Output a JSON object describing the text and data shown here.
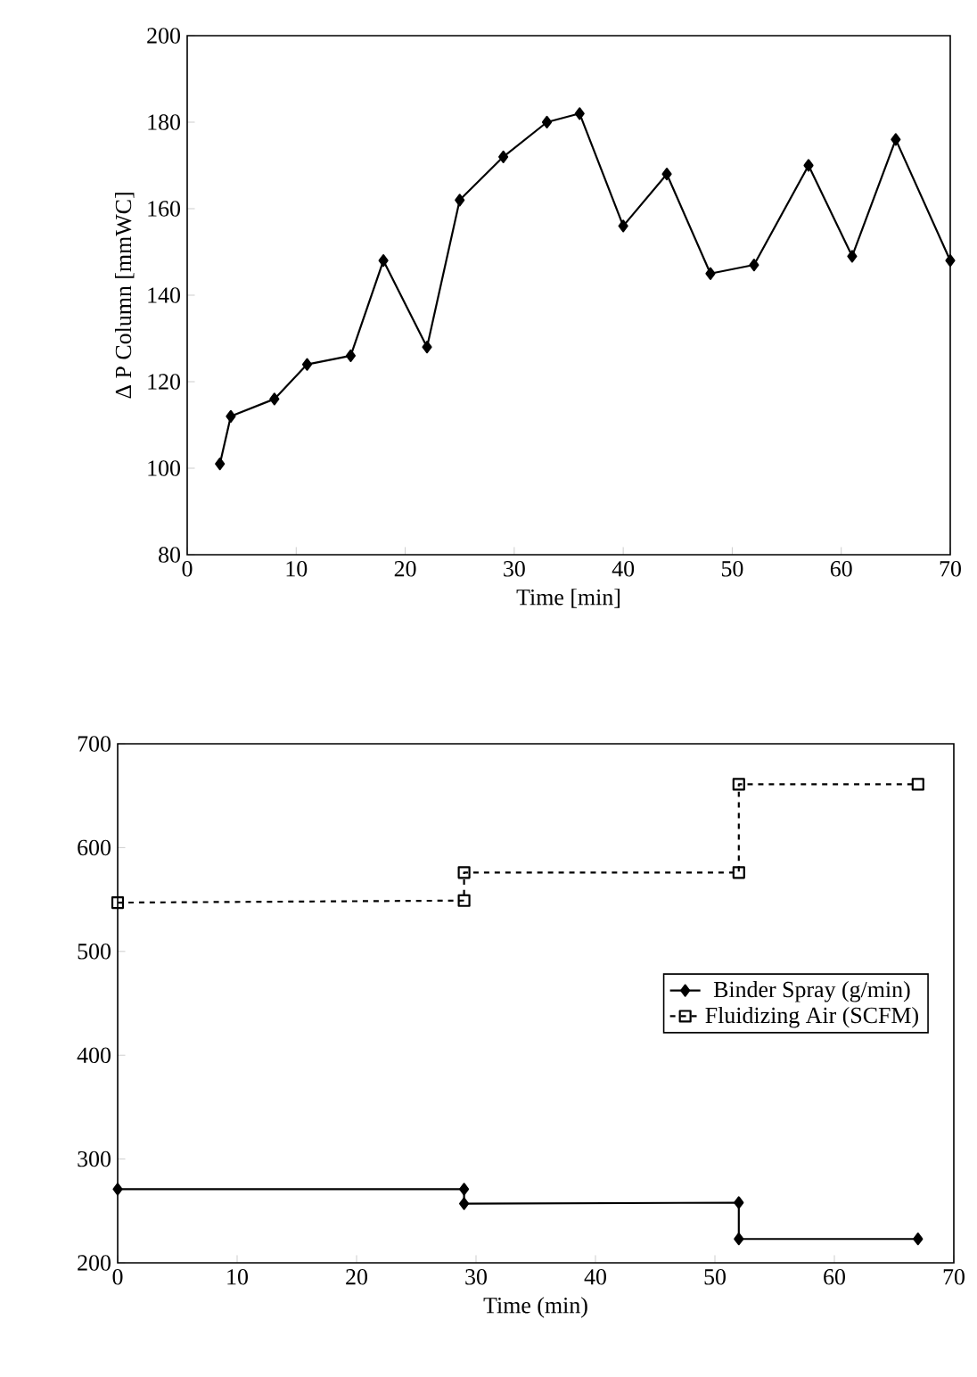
{
  "chart_data": [
    {
      "type": "line",
      "xlabel": "Time [min]",
      "ylabel": "Δ P Column [mmWC]",
      "xlim": [
        0,
        70
      ],
      "ylim": [
        80,
        200
      ],
      "xticks": [
        0,
        10,
        20,
        30,
        40,
        50,
        60,
        70
      ],
      "yticks": [
        80,
        100,
        120,
        140,
        160,
        180,
        200
      ],
      "marker": "diamond",
      "line_style": "solid",
      "series": [
        {
          "color": "#000000",
          "x": [
            3,
            4,
            8,
            11,
            15,
            18,
            22,
            25,
            29,
            33,
            36,
            40,
            44,
            48,
            52,
            57,
            61,
            65,
            70
          ],
          "values": [
            101,
            112,
            116,
            124,
            126,
            148,
            128,
            162,
            172,
            180,
            182,
            156,
            168,
            145,
            147,
            170,
            149,
            176,
            148
          ]
        }
      ]
    },
    {
      "type": "line",
      "xlabel": "Time (min)",
      "xlim": [
        0,
        70
      ],
      "ylim": [
        200,
        700
      ],
      "xticks": [
        0,
        10,
        20,
        30,
        40,
        50,
        60,
        70
      ],
      "yticks": [
        200,
        300,
        400,
        500,
        600,
        700
      ],
      "legend": "right",
      "series": [
        {
          "name": "Binder Spray (g/min)",
          "color": "#000000",
          "marker": "diamond",
          "line_style": "solid",
          "x": [
            0,
            29,
            29,
            52,
            52,
            67
          ],
          "values": [
            271,
            271,
            257,
            258,
            223,
            223
          ]
        },
        {
          "name": "Fluidizing Air (SCFM)",
          "color": "#000000",
          "marker": "square",
          "line_style": "dashed",
          "x": [
            0,
            29,
            29,
            52,
            52,
            67
          ],
          "values": [
            547,
            549,
            576,
            576,
            661,
            661
          ]
        }
      ]
    }
  ]
}
